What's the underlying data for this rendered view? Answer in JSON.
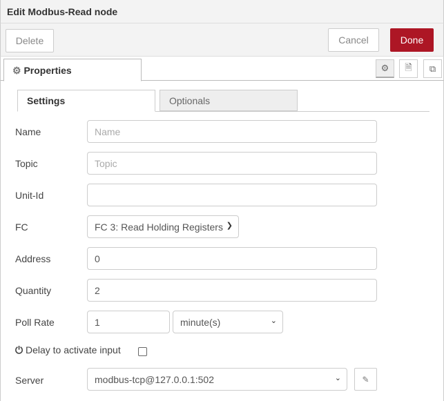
{
  "title": "Edit Modbus-Read node",
  "toolbar": {
    "delete": "Delete",
    "cancel": "Cancel",
    "done": "Done",
    "done_color": "#ad1625"
  },
  "tabs": {
    "properties": "Properties"
  },
  "subtabs": {
    "settings": "Settings",
    "optionals": "Optionals"
  },
  "form": {
    "name": {
      "label": "Name",
      "value": "",
      "placeholder": "Name"
    },
    "topic": {
      "label": "Topic",
      "value": "",
      "placeholder": "Topic"
    },
    "unitid": {
      "label": "Unit-Id",
      "value": ""
    },
    "fc": {
      "label": "FC",
      "value": "FC 3: Read Holding Registers"
    },
    "address": {
      "label": "Address",
      "value": "0"
    },
    "quantity": {
      "label": "Quantity",
      "value": "2"
    },
    "pollrate": {
      "label": "Poll Rate",
      "value": "1",
      "unit": "minute(s)"
    },
    "delay": {
      "label": "Delay to activate input",
      "checked": false
    },
    "server": {
      "label": "Server",
      "value": "modbus-tcp@127.0.0.1:502"
    }
  }
}
